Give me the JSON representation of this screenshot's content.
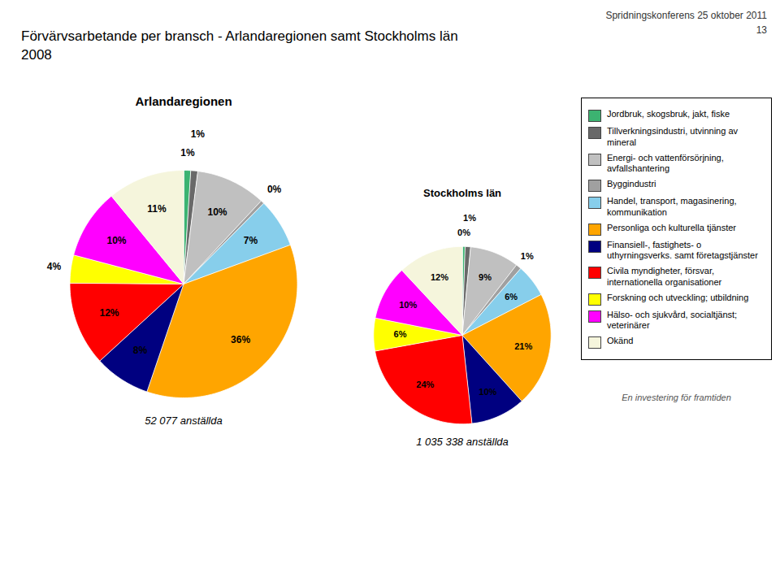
{
  "title": "Förvärvsarbetande per bransch - Arlandaregionen samt Stockholms län",
  "subtitle": "2008",
  "annotations": [
    "Spridningskonferens 25 oktober 2011",
    "13",
    "En investering för framtiden"
  ],
  "chart_data": [
    {
      "type": "pie",
      "title": "Arlandaregionen",
      "subtitle": "52 077 anställda",
      "categories": [
        "Jordbruk, skogsbruk, jakt, fiske",
        "Tillverkningsindustri, utvinning av\nmineral",
        "Energi- och vattenförsörjning,\navfallshantering",
        "Byggindustri",
        "Handel, transport, magasinering,\nkommunikation",
        "Personliga och kulturella tjänster",
        "Finansiell-, fastighets- o\nuthyrningsverks. samt företagstjänster",
        "Civila myndigheter, försvar,\ninternationella organisationer",
        "Forskning och utveckling; utbildning",
        "Hälso- och sjukvård, socialtjänst;\nveterinärer",
        "Okänd"
      ],
      "values": [
        1,
        1,
        10,
        0.5,
        7,
        36,
        8,
        12,
        4,
        10,
        11
      ],
      "value_labels": [
        "1%",
        "1%",
        "10%",
        "0%",
        "7%",
        "36%",
        "8%",
        "12%",
        "4%",
        "10%",
        "11%"
      ],
      "colors": [
        "#3CB371",
        "#696969",
        "#C0C0C0",
        "#A0A0A0",
        "#87CEEB",
        "#FFA500",
        "#000080",
        "#FF0000",
        "#FFFF00",
        "#FF00FF",
        "#F5F5DC"
      ],
      "data_labels": true,
      "legend": "right"
    },
    {
      "type": "pie",
      "title": "Stockholms län",
      "subtitle": "1 035 338 anställda",
      "categories": [
        "Jordbruk, skogsbruk, jakt, fiske",
        "Tillverkningsindustri, utvinning av\nmineral",
        "Energi- och vattenförsörjning,\navfallshantering",
        "Byggindustri",
        "Handel, transport, magasinering,\nkommunikation",
        "Personliga och kulturella tjänster",
        "Finansiell-, fastighets- o\nuthyrningsverks. samt företagstjänster",
        "Civila myndigheter, försvar,\ninternationella organisationer",
        "Forskning och utveckling; utbildning",
        "Hälso- och sjukvård, socialtjänst;\nveterinärer",
        "Okänd"
      ],
      "values": [
        0.5,
        1,
        9,
        1,
        6,
        21,
        10,
        24,
        6,
        10,
        12
      ],
      "value_labels": [
        "0%",
        "1%",
        "9%",
        "1%",
        "6%",
        "21%",
        "10%",
        "24%",
        "6%",
        "10%",
        "12%"
      ],
      "colors": [
        "#3CB371",
        "#696969",
        "#C0C0C0",
        "#A0A0A0",
        "#87CEEB",
        "#FFA500",
        "#000080",
        "#FF0000",
        "#FFFF00",
        "#FF00FF",
        "#F5F5DC"
      ],
      "data_labels": true
    }
  ]
}
